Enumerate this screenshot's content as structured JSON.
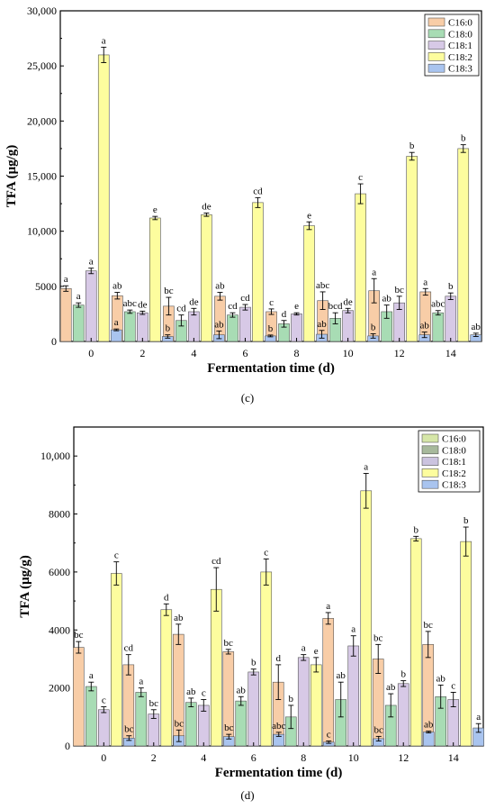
{
  "chart_data": [
    {
      "type": "bar",
      "panel_label": "(c)",
      "xlabel": "Fermentation time (d)",
      "ylabel": "TFA (μg/g)",
      "ylim": [
        0,
        30000
      ],
      "yticks": [
        0,
        5000,
        10000,
        15000,
        20000,
        25000,
        30000
      ],
      "ytick_labels": [
        "0",
        "5000",
        "10,000",
        "15,000",
        "20,000",
        "25,000",
        "30,000"
      ],
      "categories": [
        "0",
        "2",
        "4",
        "6",
        "8",
        "10",
        "12",
        "14"
      ],
      "legend_position": "top-right",
      "series": [
        {
          "name": "C16:0",
          "color": "#f8cda7",
          "values": [
            4800,
            4150,
            3200,
            4100,
            2700,
            3700,
            4600,
            4500
          ],
          "errors": [
            250,
            300,
            800,
            350,
            250,
            800,
            1100,
            300
          ],
          "letters": [
            "a",
            "ab",
            "bc",
            "ab",
            "c",
            "abc",
            "a",
            "a"
          ]
        },
        {
          "name": "C18:0",
          "color": "#a8dcb4",
          "values": [
            3300,
            2700,
            1900,
            2400,
            1600,
            2100,
            2700,
            2600
          ],
          "errors": [
            200,
            150,
            500,
            200,
            300,
            500,
            600,
            200
          ],
          "letters": [
            "a",
            "abc",
            "cd",
            "cd",
            "d",
            "bcd",
            "ab",
            "abc"
          ]
        },
        {
          "name": "C18:1",
          "color": "#d7c9e6",
          "values": [
            6400,
            2600,
            2700,
            3100,
            2500,
            2800,
            3500,
            4100
          ],
          "errors": [
            250,
            150,
            300,
            250,
            100,
            200,
            600,
            300
          ],
          "letters": [
            "a",
            "de",
            "de",
            "cd",
            "e",
            "de",
            "bc",
            "b"
          ]
        },
        {
          "name": "C18:2",
          "color": "#fdfd9e",
          "values": [
            26000,
            11200,
            11500,
            12600,
            10500,
            13400,
            16800,
            17500
          ],
          "errors": [
            700,
            150,
            150,
            450,
            350,
            900,
            350,
            350
          ],
          "letters": [
            "a",
            "e",
            "de",
            "cd",
            "e",
            "c",
            "b",
            "b"
          ]
        },
        {
          "name": "C18:3",
          "color": "#a9c4ef",
          "values": [
            1050,
            450,
            600,
            500,
            650,
            500,
            600,
            600
          ],
          "errors": [
            80,
            150,
            350,
            80,
            350,
            200,
            250,
            150
          ],
          "letters": [
            "a",
            "b",
            "ab",
            "b",
            "ab",
            "b",
            "ab",
            "ab"
          ]
        }
      ]
    },
    {
      "type": "bar",
      "panel_label": "(d)",
      "xlabel": "Fermentation time (d)",
      "ylabel": "TFA (μg/g)",
      "ylim": [
        0,
        11000
      ],
      "yticks": [
        0,
        2000,
        4000,
        6000,
        8000,
        10000
      ],
      "ytick_labels": [
        "0",
        "2000",
        "4000",
        "6000",
        "8000",
        "10,000"
      ],
      "categories": [
        "0",
        "2",
        "4",
        "6",
        "8",
        "10",
        "12",
        "14"
      ],
      "legend_position": "top-right",
      "series": [
        {
          "name": "C16:0",
          "color": "#f8cda7",
          "legend_color": "#d6e6a8",
          "values": [
            3400,
            2800,
            3850,
            3250,
            2200,
            4400,
            3000,
            3500
          ],
          "errors": [
            200,
            350,
            350,
            80,
            600,
            200,
            500,
            450
          ],
          "letters": [
            "bc",
            "cd",
            "ab",
            "bc",
            "d",
            "a",
            "bc",
            "bc"
          ]
        },
        {
          "name": "C18:0",
          "color": "#a8dcb4",
          "legend_color": "#a7b99c",
          "values": [
            2050,
            1850,
            1500,
            1550,
            1000,
            1600,
            1400,
            1700
          ],
          "errors": [
            150,
            150,
            150,
            150,
            400,
            600,
            400,
            400
          ],
          "letters": [
            "a",
            "a",
            "ab",
            "ab",
            "b",
            "ab",
            "ab",
            "ab"
          ]
        },
        {
          "name": "C18:1",
          "color": "#d7c9e6",
          "legend_color": "#cbc3df",
          "values": [
            1250,
            1100,
            1400,
            2550,
            3050,
            3450,
            2150,
            1600
          ],
          "errors": [
            100,
            150,
            200,
            100,
            100,
            350,
            100,
            250
          ],
          "letters": [
            "c",
            "bc",
            "c",
            "b",
            "a",
            "a",
            "b",
            "c"
          ]
        },
        {
          "name": "C18:2",
          "color": "#fdfd9e",
          "legend_color": "#fdfd9e",
          "values": [
            5950,
            4700,
            5400,
            6000,
            2800,
            8800,
            7150,
            7050
          ],
          "errors": [
            400,
            200,
            750,
            450,
            250,
            600,
            80,
            500
          ],
          "letters": [
            "c",
            "d",
            "cd",
            "c",
            "e",
            "a",
            "b",
            "b"
          ]
        },
        {
          "name": "C18:3",
          "color": "#a9c4ef",
          "legend_color": "#a9c4ef",
          "values": [
            270,
            350,
            320,
            400,
            130,
            250,
            480,
            620
          ],
          "errors": [
            80,
            200,
            80,
            70,
            40,
            80,
            30,
            150
          ],
          "letters": [
            "bc",
            "bc",
            "bc",
            "abc",
            "c",
            "bc",
            "ab",
            "a"
          ]
        }
      ]
    }
  ]
}
